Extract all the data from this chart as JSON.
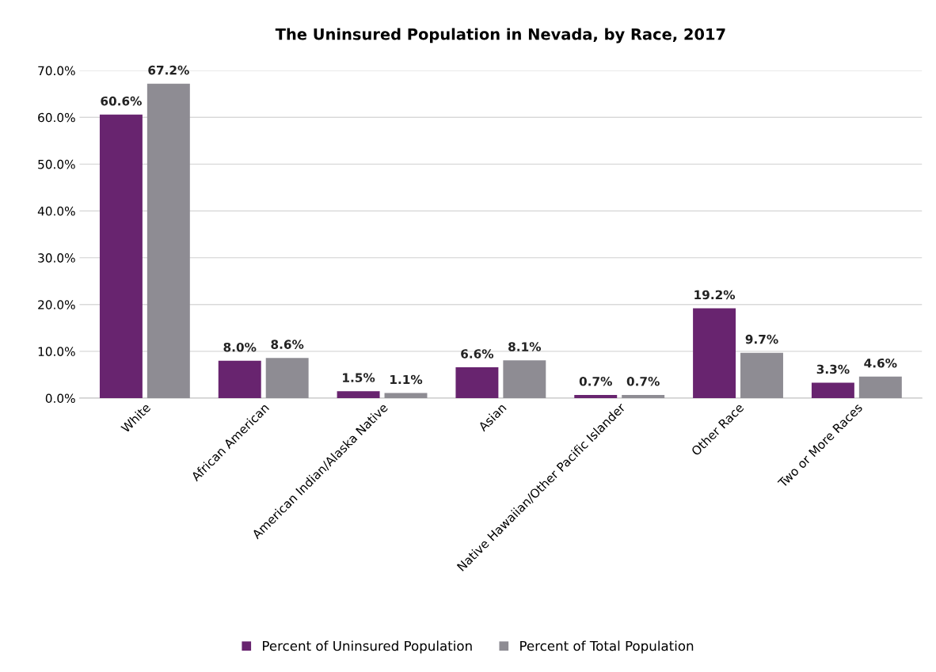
{
  "chart_data": {
    "type": "bar",
    "title": "The Uninsured Population in Nevada, by Race, 2017",
    "categories": [
      "White",
      "African American",
      "American Indian/Alaska Native",
      "Asian",
      "Native Hawaiian/Other Pacific Islander",
      "Other Race",
      "Two or More Races"
    ],
    "series": [
      {
        "name": "Percent of Uninsured Population",
        "color": "#68246f",
        "values": [
          60.6,
          8.0,
          1.5,
          6.6,
          0.7,
          19.2,
          3.3
        ],
        "value_labels": [
          "60.6%",
          "8.0%",
          "1.5%",
          "6.6%",
          "0.7%",
          "19.2%",
          "3.3%"
        ]
      },
      {
        "name": "Percent of Total Population",
        "color": "#8e8c93",
        "values": [
          67.2,
          8.6,
          1.1,
          8.1,
          0.7,
          9.7,
          4.6
        ],
        "value_labels": [
          "67.2%",
          "8.6%",
          "1.1%",
          "8.1%",
          "0.7%",
          "9.7%",
          "4.6%"
        ]
      }
    ],
    "ylim": [
      0,
      70
    ],
    "yticks": [
      {
        "value": 0,
        "label": "0.0%"
      },
      {
        "value": 10,
        "label": "10.0%"
      },
      {
        "value": 20,
        "label": "20.0%"
      },
      {
        "value": 30,
        "label": "30.0%"
      },
      {
        "value": 40,
        "label": "40.0%"
      },
      {
        "value": 50,
        "label": "50.0%"
      },
      {
        "value": 60,
        "label": "60.0%"
      },
      {
        "value": 70,
        "label": "70.0%"
      }
    ],
    "grid": "y",
    "legend": "bottom"
  }
}
